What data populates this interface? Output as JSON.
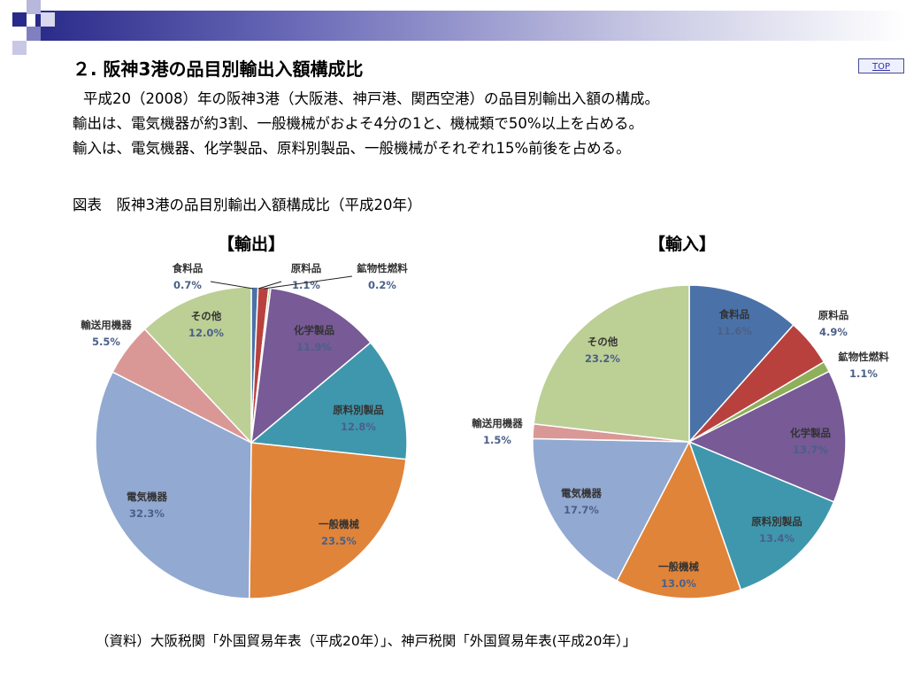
{
  "title": "２. 阪神3港の品目別輸出入額構成比",
  "top_link": "TOP",
  "description": {
    "line1": "平成20（2008）年の阪神3港（大阪港、神戸港、関西空港）の品目別輸出入額の構成。",
    "line2": "輸出は、電気機器が約3割、一般機械がおよそ4分の1と、機械類で50%以上を占める。",
    "line3": "輸入は、電気機器、化学製品、原料別製品、一般機械がそれぞれ15%前後を占める。"
  },
  "figure_caption": "図表　阪神3港の品目別輸出入額構成比（平成20年）",
  "source": "（資料）大阪税関「外国貿易年表（平成20年）」、神戸税関「外国貿易年表(平成20年）」",
  "colors": {
    "food": "#4a72a8",
    "raw": "#b8413e",
    "mineral": "#8fb05a",
    "chemical": "#775a96",
    "manufactured": "#3f97ad",
    "machinery": "#e0843a",
    "electrical": "#92a9d2",
    "transport": "#d99896",
    "other": "#bccf95"
  },
  "chart_data": [
    {
      "type": "pie",
      "title": "【輸出】",
      "unit": "%",
      "slices": [
        {
          "label": "食料品",
          "value": 0.7,
          "value_text": "0.7%",
          "color_key": "food"
        },
        {
          "label": "原料品",
          "value": 1.1,
          "value_text": "1.1%",
          "color_key": "raw"
        },
        {
          "label": "鉱物性燃料",
          "value": 0.2,
          "value_text": "0.2%",
          "color_key": "mineral"
        },
        {
          "label": "化学製品",
          "value": 11.9,
          "value_text": "11.9%",
          "color_key": "chemical"
        },
        {
          "label": "原料別製品",
          "value": 12.8,
          "value_text": "12.8%",
          "color_key": "manufactured"
        },
        {
          "label": "一般機械",
          "value": 23.5,
          "value_text": "23.5%",
          "color_key": "machinery"
        },
        {
          "label": "電気機器",
          "value": 32.3,
          "value_text": "32.3%",
          "color_key": "electrical"
        },
        {
          "label": "輸送用機器",
          "value": 5.5,
          "value_text": "5.5%",
          "color_key": "transport"
        },
        {
          "label": "その他",
          "value": 12.0,
          "value_text": "12.0%",
          "color_key": "other"
        }
      ]
    },
    {
      "type": "pie",
      "title": "【輸入】",
      "unit": "%",
      "slices": [
        {
          "label": "食料品",
          "value": 11.6,
          "value_text": "11.6%",
          "color_key": "food"
        },
        {
          "label": "原料品",
          "value": 4.9,
          "value_text": "4.9%",
          "color_key": "raw"
        },
        {
          "label": "鉱物性燃料",
          "value": 1.1,
          "value_text": "1.1%",
          "color_key": "mineral"
        },
        {
          "label": "化学製品",
          "value": 13.7,
          "value_text": "13.7%",
          "color_key": "chemical"
        },
        {
          "label": "原料別製品",
          "value": 13.4,
          "value_text": "13.4%",
          "color_key": "manufactured"
        },
        {
          "label": "一般機械",
          "value": 13.0,
          "value_text": "13.0%",
          "color_key": "machinery"
        },
        {
          "label": "電気機器",
          "value": 17.7,
          "value_text": "17.7%",
          "color_key": "electrical"
        },
        {
          "label": "輸送用機器",
          "value": 1.5,
          "value_text": "1.5%",
          "color_key": "transport"
        },
        {
          "label": "その他",
          "value": 23.2,
          "value_text": "23.2%",
          "color_key": "other"
        }
      ]
    }
  ]
}
